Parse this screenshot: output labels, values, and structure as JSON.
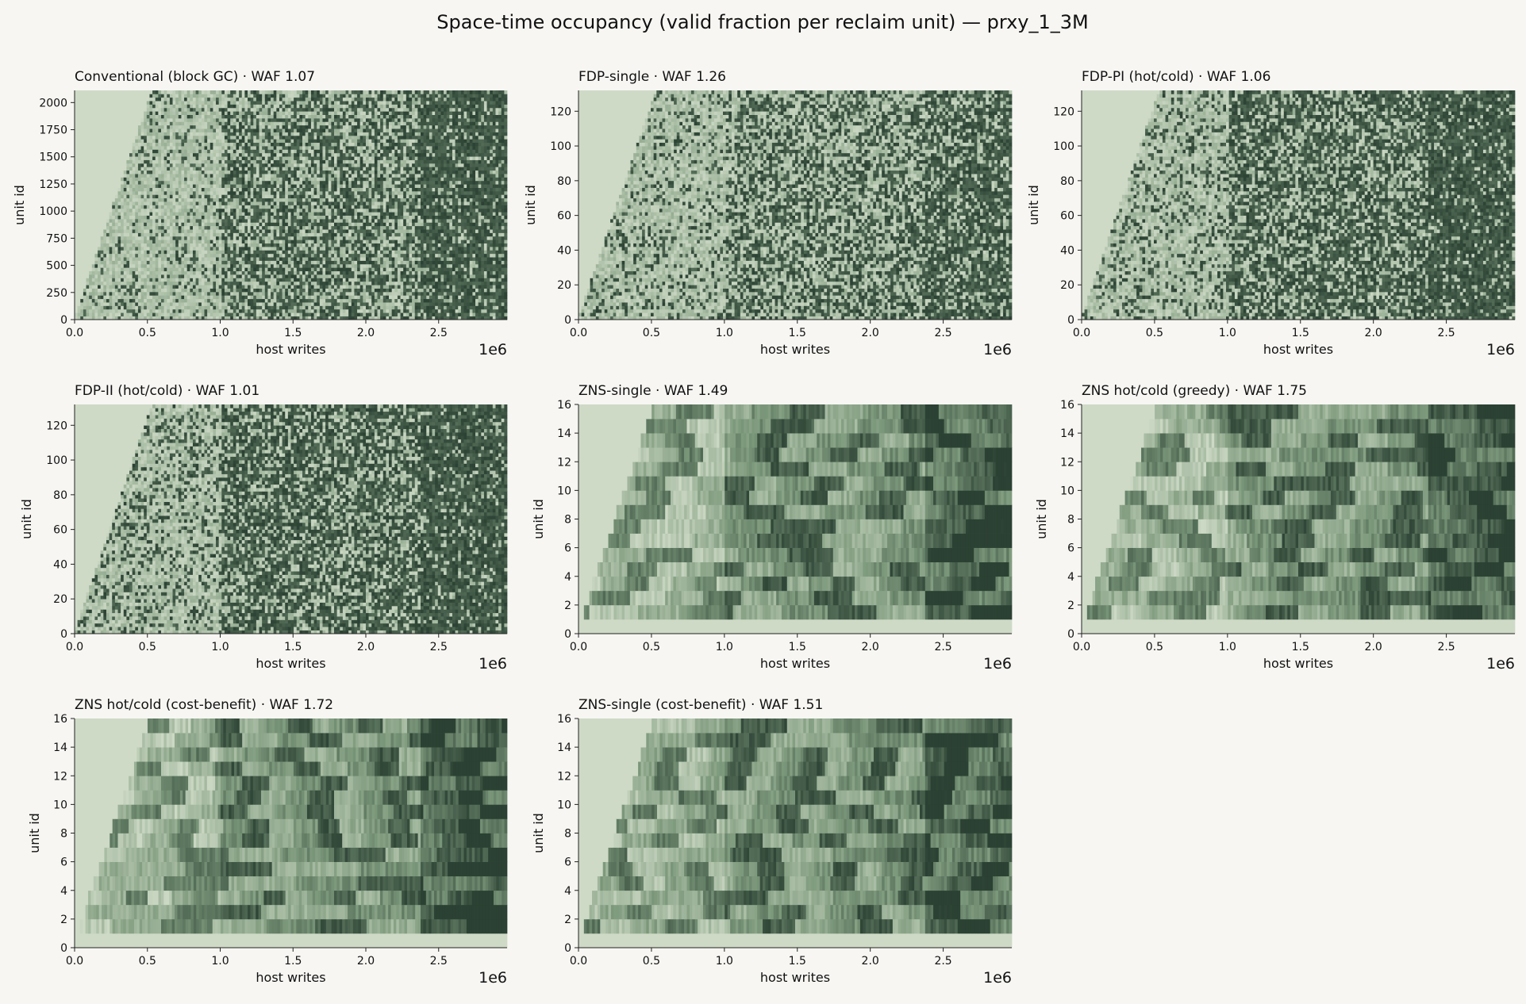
{
  "figure": {
    "title": "Space-time occupancy (valid fraction per reclaim unit) — prxy_1_3M",
    "background": "#f7f6f3",
    "colormap": {
      "low": "#d1ddc9",
      "mid": "#7e9a7d",
      "high": "#2b4133"
    }
  },
  "chart_data": [
    {
      "type": "heatmap",
      "title": "Conventional (block GC) · WAF 1.07",
      "xlabel": "host writes",
      "ylabel": "unit id",
      "x_offset_label": "1e6",
      "xlim": [
        0,
        2.97
      ],
      "ylim": [
        0,
        2112
      ],
      "xticks": [
        "0.0",
        "0.5",
        "1.0",
        "1.5",
        "2.0",
        "2.5"
      ],
      "yticks": [
        "0",
        "250",
        "500",
        "750",
        "1000",
        "1250",
        "1500",
        "1750",
        "2000"
      ],
      "phases": [
        {
          "x_end": 1.0,
          "level": 0.15
        },
        {
          "x_end": 2.38,
          "level": 0.52
        },
        {
          "x_end": 2.97,
          "level": 0.82
        }
      ]
    },
    {
      "type": "heatmap",
      "title": "FDP-single · WAF 1.26",
      "xlabel": "host writes",
      "ylabel": "unit id",
      "x_offset_label": "1e6",
      "xlim": [
        0,
        2.97
      ],
      "ylim": [
        0,
        132
      ],
      "xticks": [
        "0.0",
        "0.5",
        "1.0",
        "1.5",
        "2.0",
        "2.5"
      ],
      "yticks": [
        "0",
        "20",
        "40",
        "60",
        "80",
        "100",
        "120"
      ],
      "phases": [
        {
          "x_end": 1.0,
          "level": 0.2
        },
        {
          "x_end": 2.38,
          "level": 0.45
        },
        {
          "x_end": 2.97,
          "level": 0.7
        }
      ]
    },
    {
      "type": "heatmap",
      "title": "FDP-PI (hot/cold) · WAF 1.06",
      "xlabel": "host writes",
      "ylabel": "unit id",
      "x_offset_label": "1e6",
      "xlim": [
        0,
        2.97
      ],
      "ylim": [
        0,
        132
      ],
      "xticks": [
        "0.0",
        "0.5",
        "1.0",
        "1.5",
        "2.0",
        "2.5"
      ],
      "yticks": [
        "0",
        "20",
        "40",
        "60",
        "80",
        "100",
        "120"
      ],
      "phases": [
        {
          "x_end": 1.0,
          "level": 0.22
        },
        {
          "x_end": 2.38,
          "level": 0.6
        },
        {
          "x_end": 2.97,
          "level": 0.85
        }
      ]
    },
    {
      "type": "heatmap",
      "title": "FDP-II (hot/cold) · WAF 1.01",
      "xlabel": "host writes",
      "ylabel": "unit id",
      "x_offset_label": "1e6",
      "xlim": [
        0,
        2.97
      ],
      "ylim": [
        0,
        132
      ],
      "xticks": [
        "0.0",
        "0.5",
        "1.0",
        "1.5",
        "2.0",
        "2.5"
      ],
      "yticks": [
        "0",
        "20",
        "40",
        "60",
        "80",
        "100",
        "120"
      ],
      "phases": [
        {
          "x_end": 1.0,
          "level": 0.25
        },
        {
          "x_end": 2.38,
          "level": 0.62
        },
        {
          "x_end": 2.97,
          "level": 0.85
        }
      ]
    },
    {
      "type": "heatmap",
      "title": "ZNS-single · WAF 1.49",
      "xlabel": "host writes",
      "ylabel": "unit id",
      "x_offset_label": "1e6",
      "xlim": [
        0,
        2.97
      ],
      "ylim": [
        0,
        16
      ],
      "xticks": [
        "0.0",
        "0.5",
        "1.0",
        "1.5",
        "2.0",
        "2.5"
      ],
      "yticks": [
        "0",
        "2",
        "4",
        "6",
        "8",
        "10",
        "12",
        "14",
        "16"
      ],
      "phases": [
        {
          "x_end": 1.0,
          "level": 0.3
        },
        {
          "x_end": 2.38,
          "level": 0.5
        },
        {
          "x_end": 2.97,
          "level": 0.75
        }
      ]
    },
    {
      "type": "heatmap",
      "title": "ZNS hot/cold (greedy) · WAF 1.75",
      "xlabel": "host writes",
      "ylabel": "unit id",
      "x_offset_label": "1e6",
      "xlim": [
        0,
        2.97
      ],
      "ylim": [
        0,
        16
      ],
      "xticks": [
        "0.0",
        "0.5",
        "1.0",
        "1.5",
        "2.0",
        "2.5"
      ],
      "yticks": [
        "0",
        "2",
        "4",
        "6",
        "8",
        "10",
        "12",
        "14",
        "16"
      ],
      "phases": [
        {
          "x_end": 1.0,
          "level": 0.3
        },
        {
          "x_end": 2.38,
          "level": 0.5
        },
        {
          "x_end": 2.97,
          "level": 0.8
        }
      ]
    },
    {
      "type": "heatmap",
      "title": "ZNS hot/cold (cost-benefit) · WAF 1.72",
      "xlabel": "host writes",
      "ylabel": "unit id",
      "x_offset_label": "1e6",
      "xlim": [
        0,
        2.97
      ],
      "ylim": [
        0,
        16
      ],
      "xticks": [
        "0.0",
        "0.5",
        "1.0",
        "1.5",
        "2.0",
        "2.5"
      ],
      "yticks": [
        "0",
        "2",
        "4",
        "6",
        "8",
        "10",
        "12",
        "14",
        "16"
      ],
      "phases": [
        {
          "x_end": 1.0,
          "level": 0.3
        },
        {
          "x_end": 2.38,
          "level": 0.5
        },
        {
          "x_end": 2.97,
          "level": 0.8
        }
      ]
    },
    {
      "type": "heatmap",
      "title": "ZNS-single (cost-benefit) · WAF 1.51",
      "xlabel": "host writes",
      "ylabel": "unit id",
      "x_offset_label": "1e6",
      "xlim": [
        0,
        2.97
      ],
      "ylim": [
        0,
        16
      ],
      "xticks": [
        "0.0",
        "0.5",
        "1.0",
        "1.5",
        "2.0",
        "2.5"
      ],
      "yticks": [
        "0",
        "2",
        "4",
        "6",
        "8",
        "10",
        "12",
        "14",
        "16"
      ],
      "phases": [
        {
          "x_end": 1.0,
          "level": 0.35
        },
        {
          "x_end": 2.38,
          "level": 0.5
        },
        {
          "x_end": 2.97,
          "level": 0.75
        }
      ]
    }
  ]
}
